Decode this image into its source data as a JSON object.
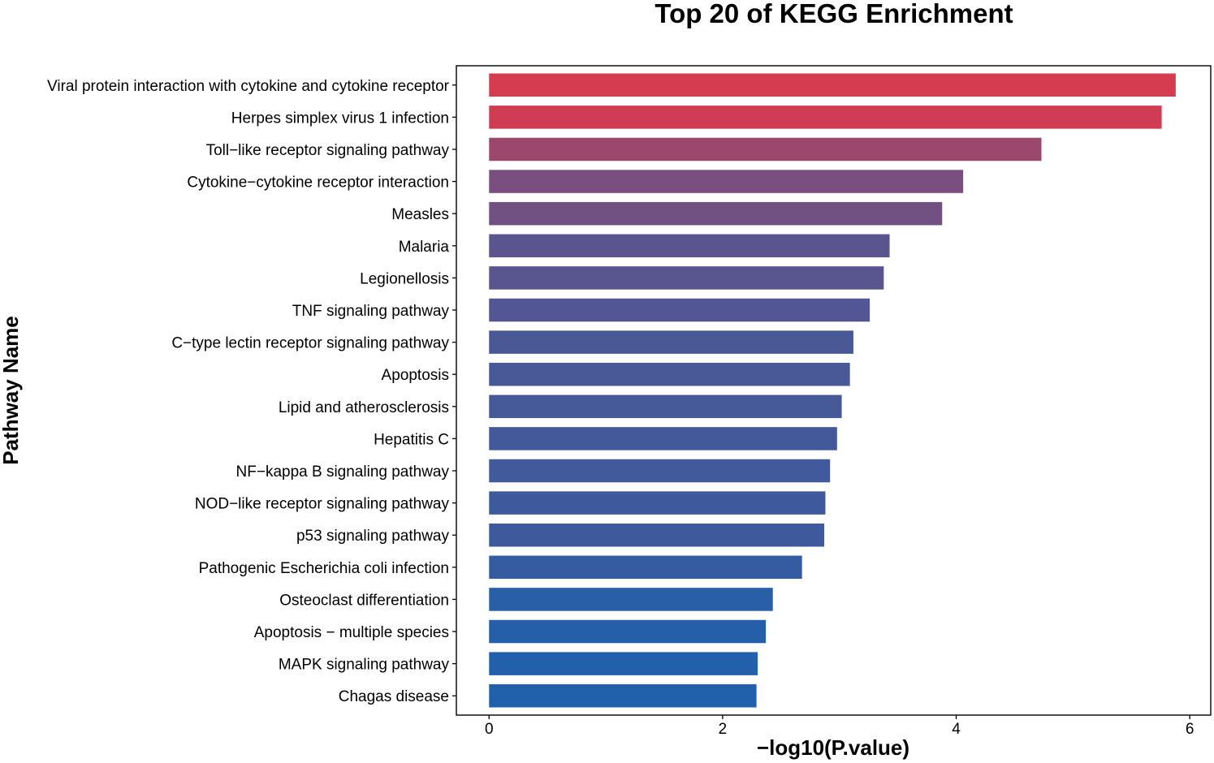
{
  "chart_data": {
    "type": "bar",
    "orientation": "horizontal",
    "title": "Top 20 of KEGG Enrichment",
    "xlabel": "−log10(P.value)",
    "ylabel": "Pathway Name",
    "xlim": [
      -0.28,
      6.18
    ],
    "xticks": [
      0,
      2,
      4,
      6
    ],
    "grid": false,
    "legend": "none",
    "color_high": "#d63c4f",
    "color_low": "#2160ab",
    "categories": [
      "Viral protein interaction with cytokine and cytokine receptor",
      "Herpes simplex virus 1 infection",
      "Toll−like receptor signaling pathway",
      "Cytokine−cytokine receptor interaction",
      "Measles",
      "Malaria",
      "Legionellosis",
      "TNF signaling pathway",
      "C−type lectin receptor signaling pathway",
      "Apoptosis",
      "Lipid and atherosclerosis",
      "Hepatitis C",
      "NF−kappa B signaling pathway",
      "NOD−like receptor signaling pathway",
      "p53 signaling pathway",
      "Pathogenic Escherichia coli infection",
      "Osteoclast differentiation",
      "Apoptosis − multiple species",
      "MAPK signaling pathway",
      "Chagas disease"
    ],
    "values": [
      5.88,
      5.76,
      4.73,
      4.06,
      3.88,
      3.43,
      3.38,
      3.26,
      3.12,
      3.09,
      3.02,
      2.98,
      2.92,
      2.88,
      2.87,
      2.68,
      2.43,
      2.37,
      2.3,
      2.29
    ]
  }
}
